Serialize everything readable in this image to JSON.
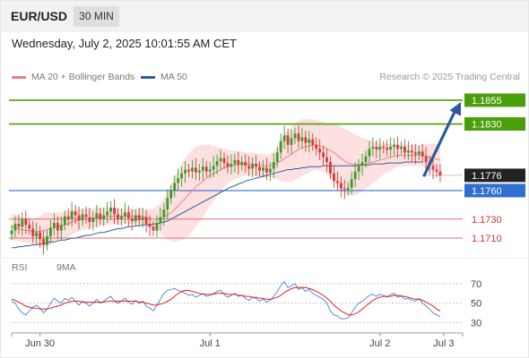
{
  "header": {
    "symbol": "EUR/USD",
    "timeframe": "30 MIN",
    "timestamp": "Wednesday, July 2, 2025 10:01:55 AM CET"
  },
  "legend": {
    "ma20_label": "MA 20 + Bollinger Bands",
    "ma20_color": "#f08080",
    "ma50_label": "MA 50",
    "ma50_color": "#2f5f9a",
    "credit": "Research © 2025 Trading Central"
  },
  "rsi_legend": {
    "rsi_label": "RSI",
    "rsi_color": "#4a7fd4",
    "ma9_label": "9MA",
    "ma9_color": "#e02020"
  },
  "colors": {
    "up_candle": "#3a9a2a",
    "down_candle": "#d83a3a",
    "target_green": "#4aa00a",
    "pivot_blue": "#2f6fd0",
    "support_red": "#e07070",
    "last_price_bg": "#222222",
    "arrow": "#2b5a9e",
    "band_fill": "#fde0e0"
  },
  "chart_data": [
    {
      "type": "candlestick",
      "title": "",
      "xlabel": "",
      "ylabel": "",
      "ylim": [
        1.1695,
        1.187
      ],
      "x_tick_labels": [
        "Jun 30",
        "Jul 1",
        "Jul 2",
        "Jul 3"
      ],
      "x_tick_index": [
        8,
        56,
        104,
        122
      ],
      "current_index": 116,
      "levels": [
        {
          "value": 1.1855,
          "label": "1.1855",
          "kind": "resistance"
        },
        {
          "value": 1.183,
          "label": "1.1830",
          "kind": "resistance"
        },
        {
          "value": 1.1776,
          "label": "1.1776",
          "kind": "last"
        },
        {
          "value": 1.176,
          "label": "1.1760",
          "kind": "pivot"
        },
        {
          "value": 1.173,
          "label": "1.1730",
          "kind": "support"
        },
        {
          "value": 1.171,
          "label": "1.1710",
          "kind": "support"
        }
      ],
      "arrow": {
        "from_value": 1.1776,
        "to_value": 1.1855
      },
      "closes": [
        1.1718,
        1.1725,
        1.1722,
        1.173,
        1.1724,
        1.172,
        1.1712,
        1.1716,
        1.1709,
        1.1703,
        1.1712,
        1.1721,
        1.1726,
        1.1718,
        1.1724,
        1.1733,
        1.173,
        1.1738,
        1.1734,
        1.1729,
        1.1735,
        1.1732,
        1.1727,
        1.1731,
        1.1736,
        1.173,
        1.1734,
        1.1738,
        1.1742,
        1.1735,
        1.173,
        1.1733,
        1.1737,
        1.1731,
        1.1728,
        1.1734,
        1.1729,
        1.1732,
        1.1725,
        1.1722,
        1.1718,
        1.1726,
        1.1732,
        1.174,
        1.1752,
        1.176,
        1.1768,
        1.1773,
        1.1778,
        1.1782,
        1.178,
        1.1784,
        1.1779,
        1.1781,
        1.1785,
        1.178,
        1.1782,
        1.1786,
        1.1791,
        1.1794,
        1.1789,
        1.1785,
        1.1788,
        1.1792,
        1.1787,
        1.179,
        1.1786,
        1.1783,
        1.1788,
        1.1785,
        1.1781,
        1.1784,
        1.1779,
        1.1783,
        1.179,
        1.18,
        1.1812,
        1.1818,
        1.1808,
        1.1815,
        1.182,
        1.1812,
        1.1816,
        1.181,
        1.1814,
        1.1808,
        1.1804,
        1.18,
        1.1795,
        1.179,
        1.1778,
        1.177,
        1.1768,
        1.1762,
        1.1761,
        1.1763,
        1.1772,
        1.178,
        1.1786,
        1.179,
        1.1796,
        1.1804,
        1.1806,
        1.1803,
        1.1806,
        1.1805,
        1.1803,
        1.1806,
        1.1808,
        1.1804,
        1.1806,
        1.18,
        1.1802,
        1.18,
        1.1798,
        1.1801,
        1.1796,
        1.179,
        1.1786,
        1.1782,
        1.178,
        1.1776
      ],
      "ma20": [
        1.1722,
        1.1721,
        1.172,
        1.1719,
        1.1718,
        1.1718,
        1.1717,
        1.1717,
        1.1717,
        1.1718,
        1.1719,
        1.172,
        1.1721,
        1.1722,
        1.1723,
        1.1724,
        1.1725,
        1.1727,
        1.1728,
        1.1729,
        1.173,
        1.173,
        1.1731,
        1.1731,
        1.1732,
        1.1732,
        1.1732,
        1.1733,
        1.1733,
        1.1733,
        1.1733,
        1.1733,
        1.1733,
        1.1733,
        1.1733,
        1.1733,
        1.1733,
        1.1733,
        1.1732,
        1.1731,
        1.173,
        1.173,
        1.1731,
        1.1732,
        1.1734,
        1.1737,
        1.174,
        1.1744,
        1.1748,
        1.1752,
        1.1756,
        1.176,
        1.1764,
        1.1767,
        1.177,
        1.1773,
        1.1776,
        1.1778,
        1.178,
        1.1782,
        1.1784,
        1.1785,
        1.1786,
        1.1787,
        1.1787,
        1.1788,
        1.1788,
        1.1788,
        1.1788,
        1.1787,
        1.1787,
        1.1786,
        1.1786,
        1.1786,
        1.1787,
        1.1789,
        1.1791,
        1.1794,
        1.1796,
        1.1798,
        1.1801,
        1.1803,
        1.1805,
        1.1806,
        1.1807,
        1.1808,
        1.1808,
        1.1807,
        1.1806,
        1.1804,
        1.1802,
        1.18,
        1.1797,
        1.1794,
        1.1791,
        1.1789,
        1.1788,
        1.1787,
        1.1787,
        1.1787,
        1.1788,
        1.1789,
        1.179,
        1.1791,
        1.1792,
        1.1793,
        1.1794,
        1.1795,
        1.1796,
        1.1797,
        1.1797,
        1.1797,
        1.1797,
        1.1797,
        1.1797,
        1.1797,
        1.1797,
        1.1796,
        1.1795,
        1.1794,
        1.1793,
        1.1792
      ],
      "band_width": [
        0.0014,
        0.0014,
        0.0013,
        0.0013,
        0.0013,
        0.0014,
        0.0014,
        0.0015,
        0.0016,
        0.0018,
        0.0018,
        0.0017,
        0.0016,
        0.0015,
        0.0014,
        0.0014,
        0.0014,
        0.0013,
        0.0012,
        0.0012,
        0.0011,
        0.0011,
        0.001,
        0.001,
        0.001,
        0.001,
        0.001,
        0.0009,
        0.0009,
        0.0009,
        0.0009,
        0.0008,
        0.0008,
        0.0008,
        0.0008,
        0.0008,
        0.0008,
        0.0008,
        0.0009,
        0.001,
        0.0011,
        0.0013,
        0.0016,
        0.002,
        0.0025,
        0.003,
        0.0034,
        0.0037,
        0.004,
        0.0042,
        0.0043,
        0.0043,
        0.0042,
        0.004,
        0.0038,
        0.0035,
        0.0032,
        0.0029,
        0.0026,
        0.0023,
        0.002,
        0.0018,
        0.0016,
        0.0015,
        0.0014,
        0.0013,
        0.0012,
        0.0012,
        0.0012,
        0.0012,
        0.0012,
        0.0012,
        0.0012,
        0.0012,
        0.0014,
        0.0017,
        0.0021,
        0.0025,
        0.0027,
        0.0029,
        0.003,
        0.003,
        0.003,
        0.0029,
        0.0028,
        0.0027,
        0.0026,
        0.0026,
        0.0026,
        0.0027,
        0.0028,
        0.003,
        0.0032,
        0.0033,
        0.0034,
        0.0034,
        0.0033,
        0.0032,
        0.003,
        0.0028,
        0.0026,
        0.0024,
        0.0022,
        0.002,
        0.0018,
        0.0016,
        0.0015,
        0.0014,
        0.0013,
        0.0012,
        0.0011,
        0.0011,
        0.0011,
        0.0011,
        0.0011,
        0.0011,
        0.0012,
        0.0013,
        0.0014,
        0.0015,
        0.0016,
        0.0017
      ],
      "ma50": [
        1.17,
        1.17,
        1.1701,
        1.1701,
        1.1702,
        1.1702,
        1.1703,
        1.1703,
        1.1704,
        1.1704,
        1.1705,
        1.1706,
        1.1706,
        1.1707,
        1.1708,
        1.1708,
        1.1709,
        1.171,
        1.171,
        1.1711,
        1.1712,
        1.1713,
        1.1713,
        1.1714,
        1.1715,
        1.1716,
        1.1716,
        1.1717,
        1.1718,
        1.1719,
        1.172,
        1.172,
        1.1721,
        1.1722,
        1.1722,
        1.1723,
        1.1723,
        1.1724,
        1.1724,
        1.1724,
        1.1725,
        1.1725,
        1.1726,
        1.1727,
        1.1728,
        1.173,
        1.1732,
        1.1734,
        1.1736,
        1.1738,
        1.174,
        1.1742,
        1.1744,
        1.1746,
        1.1748,
        1.175,
        1.1752,
        1.1754,
        1.1756,
        1.1758,
        1.176,
        1.1762,
        1.1764,
        1.1765,
        1.1767,
        1.1768,
        1.177,
        1.1771,
        1.1772,
        1.1773,
        1.1774,
        1.1775,
        1.1776,
        1.1777,
        1.1778,
        1.1779,
        1.178,
        1.1781,
        1.1782,
        1.1782,
        1.1783,
        1.1783,
        1.1784,
        1.1784,
        1.1785,
        1.1785,
        1.1785,
        1.1785,
        1.1786,
        1.1786,
        1.1786,
        1.1786,
        1.1786,
        1.1786,
        1.1786,
        1.1786,
        1.1786,
        1.1786,
        1.1787,
        1.1787,
        1.1787,
        1.1787,
        1.1788,
        1.1788,
        1.1788,
        1.1788,
        1.1789,
        1.1789,
        1.1789,
        1.1789,
        1.1789,
        1.179,
        1.179,
        1.179,
        1.179,
        1.179,
        1.179
      ]
    },
    {
      "type": "line",
      "title": "",
      "ylim": [
        25,
        80
      ],
      "y_ticks": [
        30,
        50,
        70
      ],
      "series": [
        {
          "name": "RSI",
          "values": [
            52,
            50,
            44,
            40,
            38,
            42,
            46,
            48,
            45,
            40,
            44,
            50,
            55,
            52,
            50,
            55,
            53,
            56,
            52,
            48,
            52,
            50,
            47,
            50,
            54,
            50,
            52,
            55,
            57,
            52,
            50,
            52,
            55,
            51,
            49,
            53,
            50,
            52,
            47,
            45,
            42,
            48,
            54,
            60,
            63,
            64,
            65,
            63,
            62,
            60,
            58,
            59,
            56,
            58,
            60,
            57,
            58,
            60,
            62,
            63,
            59,
            56,
            58,
            60,
            57,
            58,
            55,
            53,
            56,
            55,
            52,
            54,
            51,
            53,
            57,
            62,
            68,
            72,
            66,
            68,
            70,
            64,
            66,
            62,
            64,
            60,
            58,
            56,
            54,
            50,
            42,
            38,
            37,
            34,
            34,
            35,
            40,
            46,
            50,
            52,
            55,
            58,
            59,
            57,
            59,
            58,
            56,
            59,
            60,
            56,
            58,
            54,
            55,
            53,
            52,
            55,
            50,
            47,
            44,
            40,
            38,
            36
          ]
        },
        {
          "name": "9MA",
          "values": [
            54,
            53,
            51,
            49,
            47,
            46,
            45,
            45,
            44,
            44,
            44,
            45,
            46,
            47,
            48,
            50,
            51,
            52,
            52,
            52,
            51,
            51,
            51,
            51,
            51,
            51,
            51,
            52,
            52,
            52,
            52,
            52,
            52,
            52,
            52,
            52,
            51,
            51,
            50,
            49,
            48,
            48,
            49,
            50,
            52,
            54,
            57,
            60,
            62,
            63,
            63,
            62,
            61,
            60,
            59,
            59,
            59,
            59,
            60,
            60,
            60,
            59,
            59,
            59,
            58,
            58,
            57,
            57,
            56,
            56,
            55,
            55,
            54,
            54,
            55,
            56,
            58,
            61,
            63,
            65,
            66,
            66,
            66,
            66,
            65,
            64,
            62,
            60,
            58,
            55,
            52,
            48,
            45,
            42,
            40,
            38,
            38,
            39,
            41,
            44,
            47,
            50,
            53,
            55,
            56,
            57,
            57,
            57,
            58,
            58,
            57,
            57,
            56,
            55,
            54,
            54,
            53,
            51,
            49,
            47,
            44,
            42
          ]
        }
      ]
    }
  ]
}
